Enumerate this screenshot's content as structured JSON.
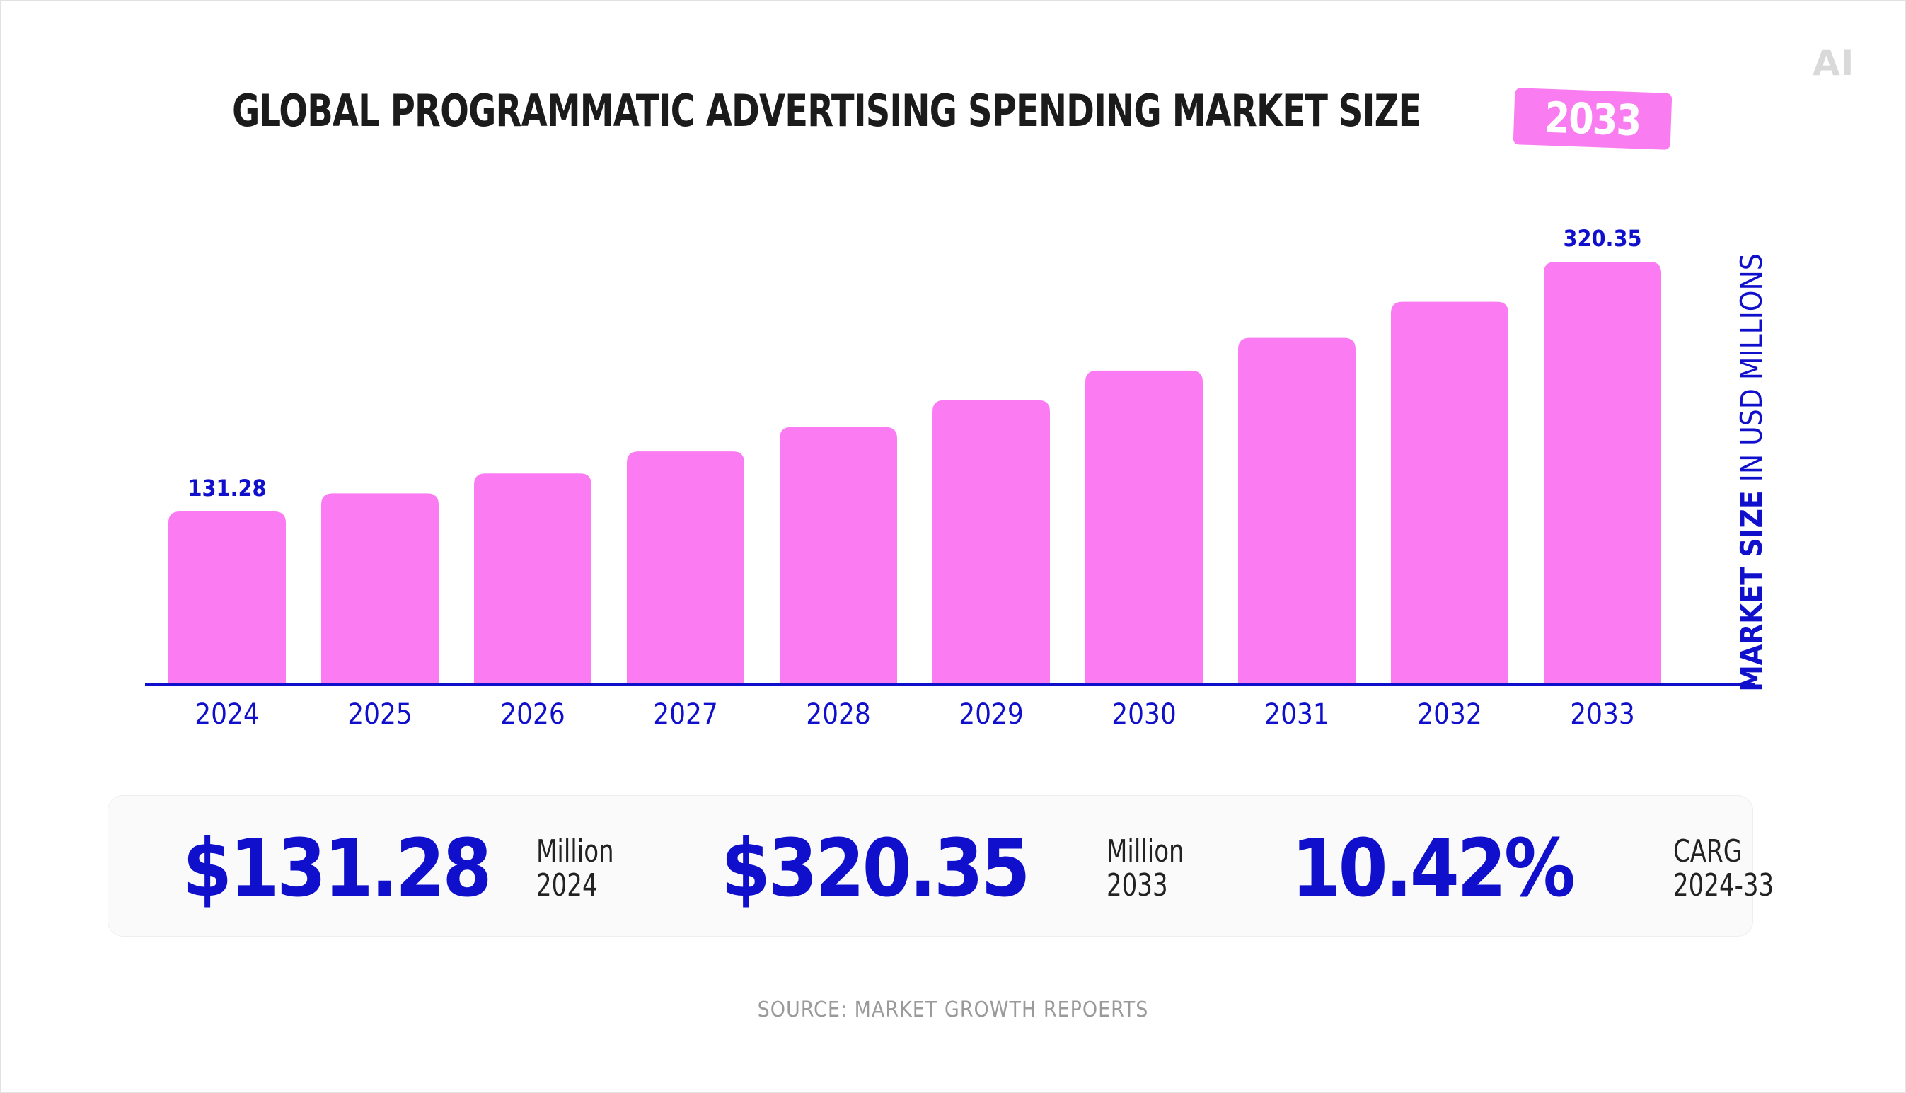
{
  "logo": "AI",
  "header": {
    "title": "GLOBAL PROGRAMMATIC ADVERTISING SPENDING MARKET SIZE",
    "badge": "2033"
  },
  "chart_data": {
    "type": "bar",
    "title": "GLOBAL PROGRAMMATIC ADVERTISING SPENDING MARKET SIZE 2033",
    "categories": [
      "2024",
      "2025",
      "2026",
      "2027",
      "2028",
      "2029",
      "2030",
      "2031",
      "2032",
      "2033"
    ],
    "values": [
      131.28,
      144.96,
      160.06,
      176.73,
      195.14,
      215.46,
      237.9,
      262.68,
      290.04,
      320.35
    ],
    "data_labels": {
      "2024": "131.28",
      "2033": "320.35"
    },
    "xlabel": "",
    "ylabel_bold": "MARKET SIZE",
    "ylabel_rest": " IN USD MILLIONS",
    "ylabel_position": "right",
    "ylim": [
      0,
      340
    ],
    "grid": false,
    "colors": {
      "bar": "#fb7cf2",
      "axis": "#1010cc",
      "label": "#1010cc"
    }
  },
  "stats": [
    {
      "value": "$131.28",
      "label_top": "Million",
      "label_bottom": "2024"
    },
    {
      "value": "$320.35",
      "label_top": "Million",
      "label_bottom": "2033"
    },
    {
      "value": "10.42%",
      "label_top": "CARG",
      "label_bottom": "2024-33"
    }
  ],
  "source": "SOURCE: MARKET GROWTH REPOERTS",
  "colors": {
    "accent": "#1010cc",
    "bar": "#fb7cf2",
    "badge": "#f97cf0",
    "title": "#1b1b1b"
  }
}
